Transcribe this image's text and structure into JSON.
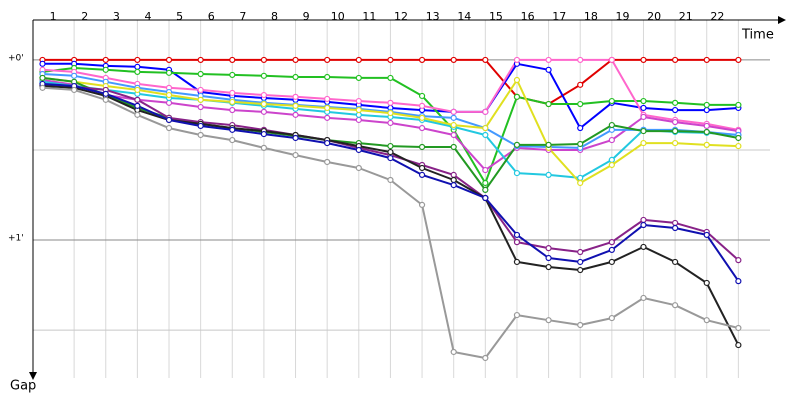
{
  "chart_data": {
    "type": "line",
    "x_label": "Time",
    "y_label": "Gap",
    "x": [
      0,
      1,
      2,
      3,
      4,
      5,
      6,
      7,
      8,
      9,
      10,
      11,
      12,
      13,
      14,
      15,
      16,
      17,
      18,
      19,
      20,
      21,
      22
    ],
    "xlim": [
      -0.3,
      23.0
    ],
    "xticks": [
      1,
      2,
      3,
      4,
      5,
      6,
      7,
      8,
      9,
      10,
      11,
      12,
      13,
      14,
      15,
      16,
      17,
      18,
      19,
      20,
      21,
      22
    ],
    "ylim": [
      -13.3,
      103.3
    ],
    "yticks": [
      {
        "value": 0,
        "label": "+0'"
      },
      {
        "value": 60,
        "label": "+1'"
      }
    ],
    "minor_grid": [
      30,
      90
    ],
    "y_inverted": true,
    "series": [
      {
        "color": "#e00000",
        "values": [
          0,
          0,
          0,
          0,
          0,
          0,
          0,
          0,
          0,
          0,
          0,
          0,
          0,
          0,
          0,
          12.3,
          14.7,
          8.3,
          0,
          0,
          0,
          0,
          0
        ]
      },
      {
        "color": "#0000ff",
        "values": [
          1.3,
          1.3,
          2,
          2.3,
          3.3,
          10.7,
          12,
          12.7,
          13.3,
          14,
          15,
          16,
          16.7,
          17.3,
          17.3,
          1.3,
          3.3,
          22.7,
          14.3,
          16,
          16.7,
          16.7,
          16
        ]
      },
      {
        "color": "#22c022",
        "values": [
          4,
          2.7,
          3.3,
          4,
          4.3,
          4.7,
          5,
          5.3,
          5.7,
          5.7,
          6,
          6,
          12,
          23.3,
          41,
          12.3,
          14.7,
          14.7,
          13.7,
          13.7,
          14.3,
          15,
          15
        ]
      },
      {
        "color": "#ff66cc",
        "values": [
          3.3,
          4,
          6,
          8,
          9.3,
          10,
          11,
          11.7,
          12.3,
          13,
          13.7,
          14.3,
          15.3,
          17.3,
          17.3,
          0,
          0,
          0,
          0,
          18.3,
          20,
          21.3,
          23.3
        ]
      },
      {
        "color": "#cc44cc",
        "values": [
          6.7,
          8.3,
          11.7,
          13.3,
          14.3,
          15.7,
          16.7,
          17.3,
          18.3,
          19.3,
          20,
          21,
          22.7,
          25,
          36.7,
          29.3,
          30,
          30,
          26.7,
          19,
          20.7,
          22,
          23.7
        ]
      },
      {
        "color": "#22c8e0",
        "values": [
          7.3,
          8.7,
          10,
          11.3,
          12.7,
          13.3,
          14.3,
          15.3,
          16.3,
          17.3,
          18.3,
          19,
          20,
          22.3,
          25,
          37.7,
          38.3,
          39.3,
          33.3,
          23.3,
          24,
          24.3,
          25
        ]
      },
      {
        "color": "#4499ff",
        "values": [
          4.7,
          5.3,
          7.3,
          9.3,
          10.7,
          12,
          13.3,
          14.3,
          15,
          15.7,
          16.3,
          17.3,
          18.7,
          19.3,
          22.7,
          28.7,
          29,
          29.3,
          23.3,
          23.3,
          23.3,
          24,
          25
        ]
      },
      {
        "color": "#e0e020",
        "values": [
          6,
          7.3,
          8.7,
          10,
          11.7,
          13.3,
          14,
          14.7,
          15.3,
          16,
          16.7,
          17.7,
          19.3,
          21.7,
          22.7,
          6.7,
          29.3,
          41,
          35,
          27.7,
          27.7,
          28.3,
          28.7
        ]
      },
      {
        "color": "#229922",
        "values": [
          6,
          7.3,
          11.7,
          16,
          19.3,
          21.3,
          22.7,
          24,
          25.3,
          26.7,
          27.7,
          28.7,
          29,
          29,
          43.3,
          28.3,
          28.3,
          28,
          21.7,
          23.7,
          23.7,
          24,
          26
        ]
      },
      {
        "color": "#882288",
        "values": [
          8.3,
          9,
          10,
          13.3,
          19.3,
          20.7,
          21.7,
          23.3,
          25,
          26.7,
          29.3,
          31.7,
          35,
          38.3,
          46,
          60.7,
          62.7,
          64,
          60.7,
          53.3,
          54.3,
          57.3,
          66.7
        ]
      },
      {
        "color": "#222222",
        "values": [
          8.7,
          9.3,
          12,
          16.7,
          20,
          21.3,
          22.7,
          23.7,
          25,
          26.7,
          28.7,
          30.7,
          36,
          40,
          46,
          67.3,
          69,
          70,
          67.3,
          62.3,
          67.3,
          74.3,
          95
        ]
      },
      {
        "color": "#1010b0",
        "values": [
          8,
          8.7,
          11.3,
          15.3,
          20,
          22,
          23.3,
          24.7,
          26,
          27.7,
          30,
          32.7,
          38.3,
          41.7,
          46,
          58.3,
          66,
          67.3,
          63.3,
          55,
          56,
          58.3,
          73.7
        ]
      },
      {
        "color": "#999999",
        "values": [
          9.3,
          10,
          13.3,
          18.3,
          22.7,
          25,
          26.7,
          29.3,
          31.7,
          34,
          36,
          40,
          48.3,
          97.3,
          99.3,
          85,
          86.7,
          88.3,
          86,
          79.3,
          81.7,
          86.7,
          89.3
        ]
      }
    ]
  }
}
